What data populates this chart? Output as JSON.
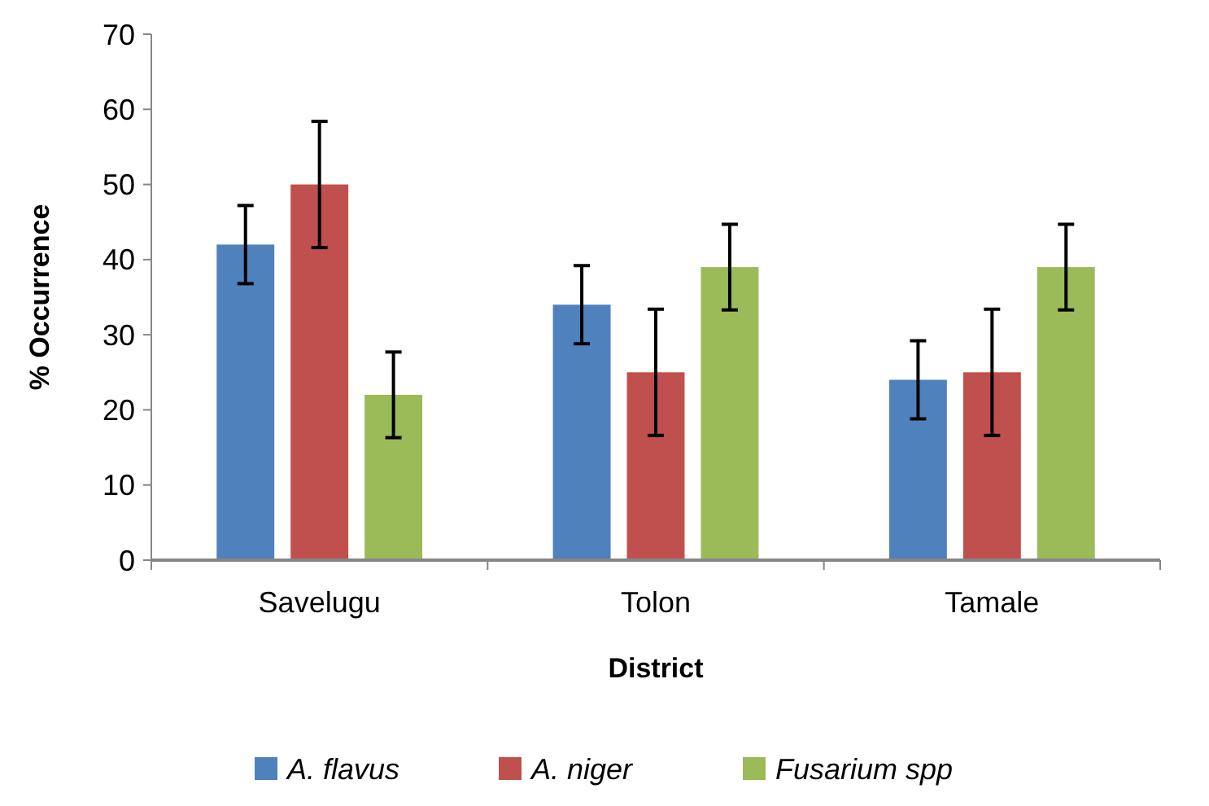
{
  "chart_data": {
    "type": "bar",
    "xlabel": "District",
    "ylabel": "% Occurrence",
    "categories": [
      "Savelugu",
      "Tolon",
      "Tamale"
    ],
    "series": [
      {
        "name": "A. flavus",
        "color": "#4f81bd",
        "values": [
          42,
          34,
          24
        ],
        "errors": [
          5.2,
          5.2,
          5.2
        ]
      },
      {
        "name": "A. niger",
        "color": "#c0504d",
        "values": [
          50,
          25,
          25
        ],
        "errors": [
          8.4,
          8.4,
          8.4
        ]
      },
      {
        "name": "Fusarium spp",
        "color": "#9bbb59",
        "values": [
          22,
          39,
          39
        ],
        "errors": [
          5.7,
          5.7,
          5.7
        ]
      }
    ],
    "ylim": [
      0,
      70
    ],
    "yticks": [
      0,
      10,
      20,
      30,
      40,
      50,
      60,
      70
    ],
    "grid": false,
    "legend": "bottom"
  }
}
